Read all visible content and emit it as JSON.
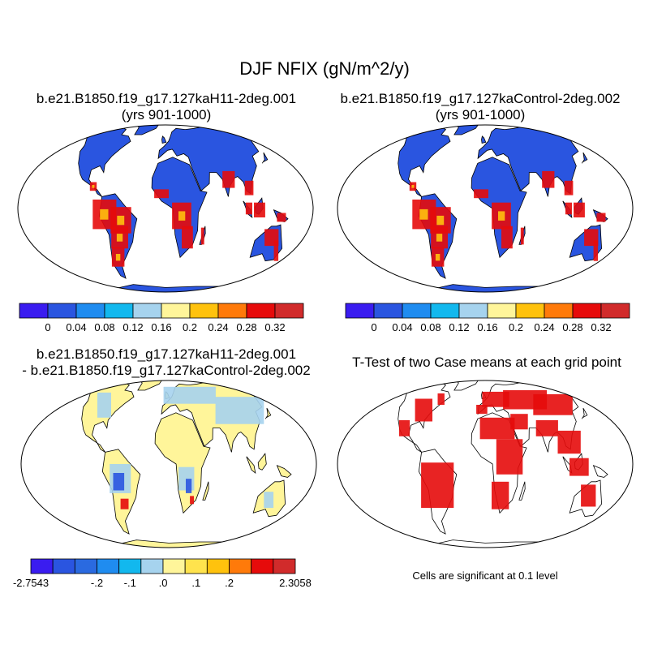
{
  "title": "DJF NFIX (gN/m^2/y)",
  "panels": [
    {
      "id": "p1",
      "title_lines": [
        "b.e21.B1850.f19_g17.127kaH11-2deg.001",
        "(yrs 901-1000)"
      ]
    },
    {
      "id": "p2",
      "title_lines": [
        "b.e21.B1850.f19_g17.127kaControl-2deg.002",
        "(yrs 901-1000)"
      ]
    },
    {
      "id": "p3",
      "title_lines": [
        "b.e21.B1850.f19_g17.127kaH11-2deg.001",
        "- b.e21.B1850.f19_g17.127kaControl-2deg.002"
      ]
    },
    {
      "id": "p4",
      "title_lines": [
        "T-Test of two Case means at each grid point"
      ]
    }
  ],
  "colorbars": {
    "absolute": {
      "colors": [
        "#3a1cf0",
        "#2a55e0",
        "#1f8cf0",
        "#12b8ee",
        "#a6d3ee",
        "#fff59a",
        "#ffc20d",
        "#ff7a0a",
        "#e60b0b",
        "#d12b2b"
      ],
      "labels": [
        "0",
        "0.04",
        "0.08",
        "0.12",
        "0.16",
        "0.2",
        "0.24",
        "0.28",
        "0.32"
      ]
    },
    "difference": {
      "colors": [
        "#3a1cf0",
        "#2a55e0",
        "#2a6ae0",
        "#1f8cf0",
        "#12b8ee",
        "#a6d3ee",
        "#fff59a",
        "#ffe34d",
        "#ffc20d",
        "#ff7a0a",
        "#e60b0b",
        "#d12b2b"
      ],
      "labels": [
        "-2.7543",
        "-.2",
        "-.1",
        ".0",
        ".1",
        ".2",
        "2.3058"
      ]
    }
  },
  "significance_note": "Cells are significant at 0.1 level",
  "map_colors": {
    "ocean": "#ffffff",
    "outline": "#000000",
    "absolute_land": "#2a55e0",
    "absolute_tropics": "#e60b0b",
    "difference_land": "#fff59a",
    "difference_mid": "#a6d3ee",
    "significant": "#e60b0b"
  }
}
